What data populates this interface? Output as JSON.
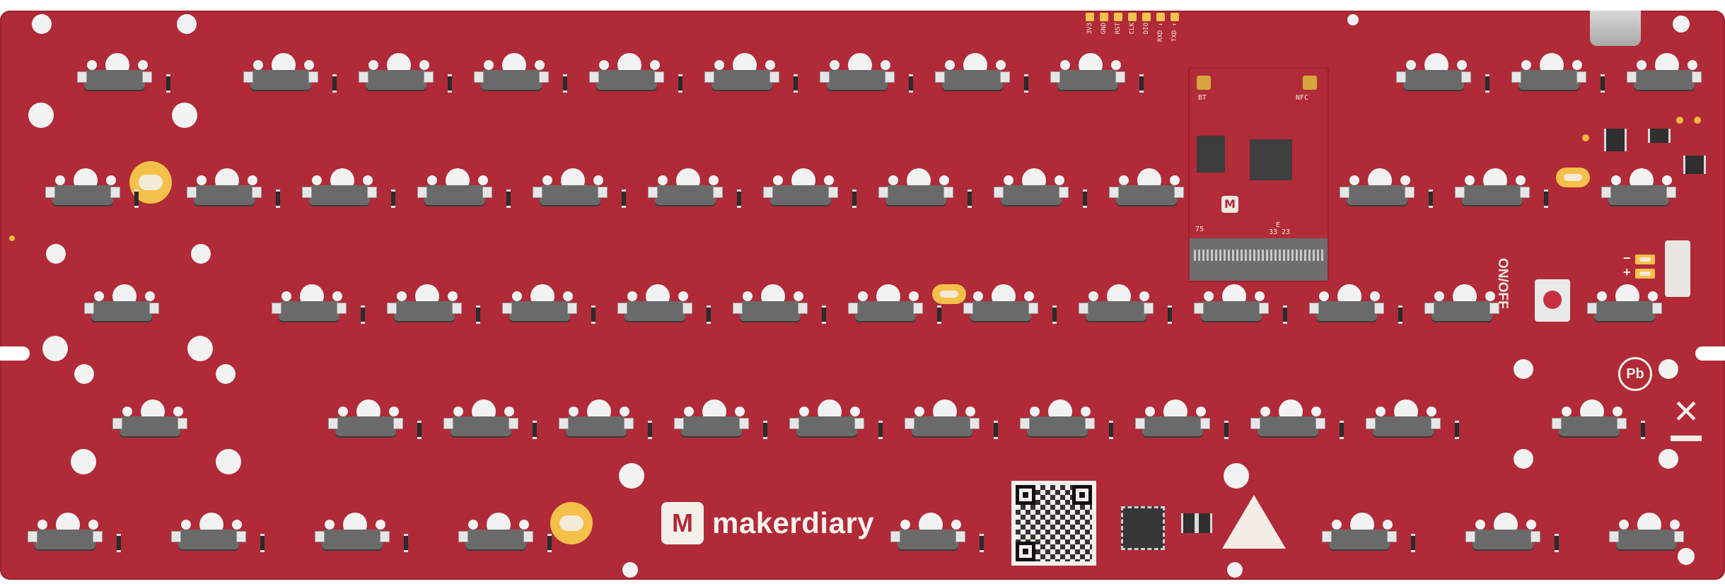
{
  "brand": {
    "logo_letter": "M",
    "name": "makerdiary"
  },
  "header_pins": [
    "3V3",
    "GND",
    "RST",
    "CLK",
    "DIO",
    "RXD ↓",
    "TXD ↑"
  ],
  "module": {
    "logo_letter": "M",
    "labels": {
      "nfc": "NFC",
      "bt": "BT",
      "num75": "75",
      "e": "E",
      "num33": "33",
      "num23": "23"
    }
  },
  "power": {
    "switch_label": "ON/OFF",
    "minus": "−",
    "plus": "+"
  },
  "marks": {
    "lead_free": "Pb",
    "weee": "✕"
  },
  "colors": {
    "pcb": "#b02a37",
    "slot": "#f5c04a",
    "switch_body": "#6a6a6a"
  }
}
